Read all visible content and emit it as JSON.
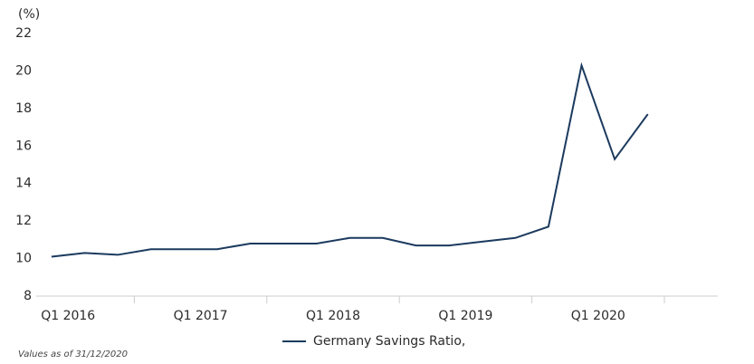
{
  "chart_data": {
    "type": "line",
    "y_label": "(%)",
    "categories": [
      "Q1 2016",
      null,
      null,
      null,
      "Q1 2017",
      null,
      null,
      null,
      "Q1 2018",
      null,
      null,
      null,
      "Q1 2019",
      null,
      null,
      null,
      "Q1 2020",
      null,
      null,
      null
    ],
    "series": [
      {
        "name": "Germany Savings Ratio,",
        "color": "#1b3a5e",
        "values": [
          null,
          10.1,
          10.3,
          10.2,
          10.5,
          10.5,
          10.5,
          10.8,
          10.8,
          10.8,
          11.1,
          11.1,
          10.7,
          10.7,
          10.9,
          11.1,
          11.7,
          20.3,
          15.3,
          17.7
        ]
      }
    ],
    "ylim": [
      8,
      22
    ],
    "yticks": [
      8,
      10,
      12,
      14,
      16,
      18,
      20,
      22
    ],
    "legend": "bottom",
    "footnote": "Values as of 31/12/2020"
  }
}
